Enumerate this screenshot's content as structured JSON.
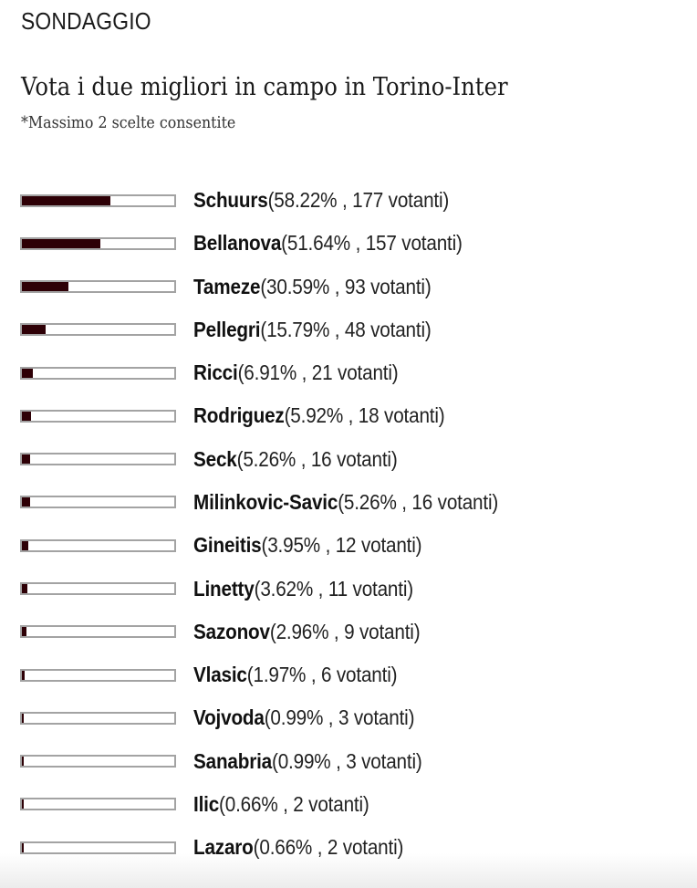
{
  "header": {
    "kicker": "SONDAGGIO",
    "title": "Vota i due migliori in campo in Torino-Inter",
    "note": "*Massimo 2 scelte consentite"
  },
  "colors": {
    "fill": "#2e0006",
    "bar_border": "#a3a3a3"
  },
  "chart_data": {
    "type": "bar",
    "orientation": "horizontal",
    "title": "Vota i due migliori in campo in Torino-Inter",
    "subtitle": "*Massimo 2 scelte consentite",
    "categories": [
      "Schuurs",
      "Bellanova",
      "Tameze",
      "Pellegri",
      "Ricci",
      "Rodriguez",
      "Seck",
      "Milinkovic-Savic",
      "Gineitis",
      "Linetty",
      "Sazonov",
      "Vlasic",
      "Vojvoda",
      "Sanabria",
      "Ilic",
      "Lazaro"
    ],
    "series": [
      {
        "name": "percent",
        "values": [
          58.22,
          51.64,
          30.59,
          15.79,
          6.91,
          5.92,
          5.26,
          5.26,
          3.95,
          3.62,
          2.96,
          1.97,
          0.99,
          0.99,
          0.66,
          0.66
        ]
      },
      {
        "name": "votanti",
        "values": [
          177,
          157,
          93,
          48,
          21,
          18,
          16,
          16,
          12,
          11,
          9,
          6,
          3,
          3,
          2,
          2
        ]
      }
    ],
    "xlim": [
      0,
      100
    ],
    "grid": false,
    "legend": "none"
  },
  "rows": [
    {
      "name": "Schuurs",
      "stats": "(58.22% , 177 votanti)",
      "pct": 58.22
    },
    {
      "name": "Bellanova",
      "stats": "(51.64% , 157 votanti)",
      "pct": 51.64
    },
    {
      "name": "Tameze",
      "stats": "(30.59% , 93 votanti)",
      "pct": 30.59
    },
    {
      "name": "Pellegri",
      "stats": "(15.79% , 48 votanti)",
      "pct": 15.79
    },
    {
      "name": "Ricci",
      "stats": "(6.91% , 21 votanti)",
      "pct": 6.91
    },
    {
      "name": "Rodriguez",
      "stats": "(5.92% , 18 votanti)",
      "pct": 5.92
    },
    {
      "name": "Seck",
      "stats": "(5.26% , 16 votanti)",
      "pct": 5.26
    },
    {
      "name": "Milinkovic-Savic",
      "stats": "(5.26% , 16 votanti)",
      "pct": 5.26
    },
    {
      "name": "Gineitis",
      "stats": "(3.95% , 12 votanti)",
      "pct": 3.95
    },
    {
      "name": "Linetty",
      "stats": "(3.62% , 11 votanti)",
      "pct": 3.62
    },
    {
      "name": "Sazonov",
      "stats": "(2.96% , 9 votanti)",
      "pct": 2.96
    },
    {
      "name": "Vlasic",
      "stats": "(1.97% , 6 votanti)",
      "pct": 1.97
    },
    {
      "name": "Vojvoda",
      "stats": "(0.99% , 3 votanti)",
      "pct": 0.99
    },
    {
      "name": "Sanabria",
      "stats": "(0.99% , 3 votanti)",
      "pct": 0.99
    },
    {
      "name": "Ilic",
      "stats": "(0.66% , 2 votanti)",
      "pct": 0.66
    },
    {
      "name": "Lazaro",
      "stats": "(0.66% , 2 votanti)",
      "pct": 0.66
    }
  ]
}
